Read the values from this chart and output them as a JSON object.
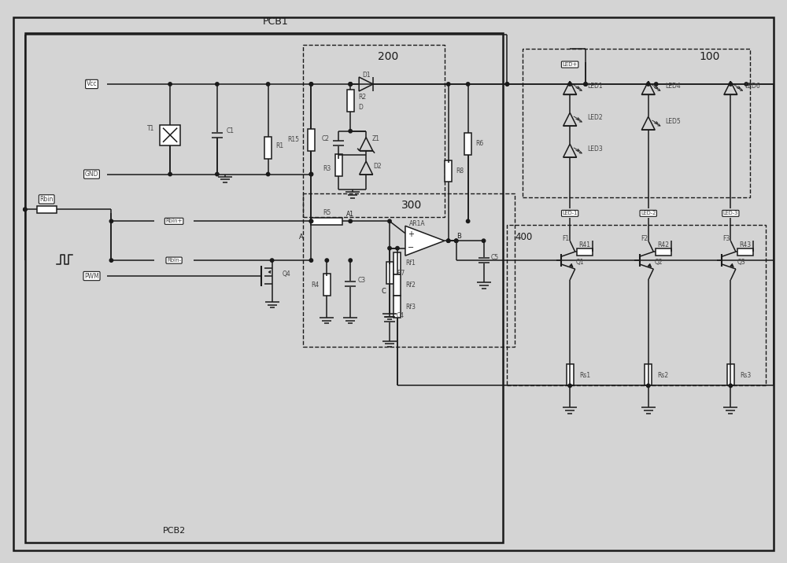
{
  "bg_color": "#d4d4d4",
  "line_color": "#1a1a1a",
  "text_color": "#444444",
  "figsize": [
    10.0,
    7.16
  ],
  "dpi": 100,
  "pcb1_label": "PCB1",
  "pcb2_label": "PCB2",
  "block_labels": [
    "200",
    "300",
    "100",
    "400"
  ],
  "component_labels": {
    "vcc": "Vcc",
    "gnd": "GND",
    "pwm": "PWM",
    "rbin": "Rbin",
    "rbin_plus": "Rbin+",
    "rbin_minus": "Rbin-",
    "led_plus": "LED+",
    "led_minus": [
      "LED-1",
      "LED-2",
      "LED-3"
    ]
  }
}
